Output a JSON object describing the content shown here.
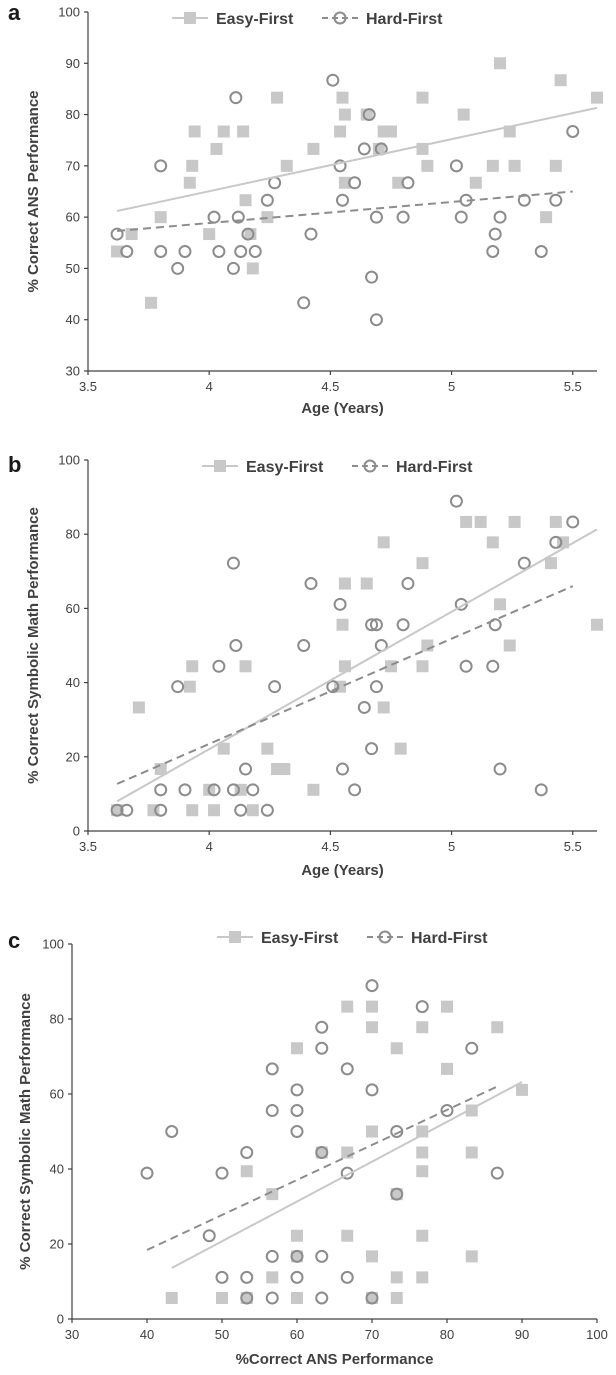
{
  "chart_data": [
    {
      "panel": "a",
      "type": "scatter",
      "xlabel": "Age (Years)",
      "ylabel": "% Correct ANS Performance",
      "xlim": [
        3.5,
        5.6
      ],
      "ylim": [
        30,
        100
      ],
      "xticks": [
        "3.5",
        "4",
        "4.5",
        "5",
        "5.5"
      ],
      "yticks": [
        "30",
        "40",
        "50",
        "60",
        "70",
        "80",
        "90",
        "100"
      ],
      "legend": [
        "Easy-First",
        "Hard-First"
      ],
      "series": [
        {
          "name": "Easy-First",
          "marker": "square",
          "color": "#c8c8c8",
          "points": [
            [
              3.62,
              53.3
            ],
            [
              3.68,
              56.7
            ],
            [
              3.76,
              43.3
            ],
            [
              3.8,
              60
            ],
            [
              3.92,
              66.7
            ],
            [
              3.93,
              70
            ],
            [
              3.94,
              76.7
            ],
            [
              4.0,
              56.7
            ],
            [
              4.03,
              73.3
            ],
            [
              4.06,
              76.7
            ],
            [
              4.14,
              76.7
            ],
            [
              4.15,
              63.3
            ],
            [
              4.17,
              56.7
            ],
            [
              4.18,
              50
            ],
            [
              4.24,
              60
            ],
            [
              4.28,
              83.3
            ],
            [
              4.32,
              70
            ],
            [
              4.43,
              73.3
            ],
            [
              4.54,
              76.7
            ],
            [
              4.55,
              83.3
            ],
            [
              4.56,
              80
            ],
            [
              4.56,
              66.7
            ],
            [
              4.65,
              80
            ],
            [
              4.7,
              73.3
            ],
            [
              4.72,
              76.7
            ],
            [
              4.75,
              76.7
            ],
            [
              4.78,
              66.7
            ],
            [
              4.88,
              83.3
            ],
            [
              4.88,
              73.3
            ],
            [
              4.9,
              70
            ],
            [
              5.05,
              80
            ],
            [
              5.1,
              66.7
            ],
            [
              5.17,
              70
            ],
            [
              5.2,
              90
            ],
            [
              5.24,
              76.7
            ],
            [
              5.26,
              70
            ],
            [
              5.39,
              60
            ],
            [
              5.43,
              70
            ],
            [
              5.45,
              86.7
            ],
            [
              5.6,
              83.3
            ]
          ]
        },
        {
          "name": "Hard-First",
          "marker": "circle",
          "color": "#8c8c8c",
          "points": [
            [
              3.62,
              56.7
            ],
            [
              3.66,
              53.3
            ],
            [
              3.8,
              70
            ],
            [
              3.8,
              53.3
            ],
            [
              3.87,
              50
            ],
            [
              3.9,
              53.3
            ],
            [
              4.02,
              60
            ],
            [
              4.04,
              53.3
            ],
            [
              4.1,
              50
            ],
            [
              4.11,
              83.3
            ],
            [
              4.12,
              60
            ],
            [
              4.13,
              53.3
            ],
            [
              4.16,
              56.7
            ],
            [
              4.19,
              53.3
            ],
            [
              4.24,
              63.3
            ],
            [
              4.27,
              66.7
            ],
            [
              4.39,
              43.3
            ],
            [
              4.42,
              56.7
            ],
            [
              4.51,
              86.7
            ],
            [
              4.54,
              70
            ],
            [
              4.55,
              63.3
            ],
            [
              4.6,
              66.7
            ],
            [
              4.64,
              73.3
            ],
            [
              4.66,
              80
            ],
            [
              4.67,
              48.3
            ],
            [
              4.69,
              60
            ],
            [
              4.69,
              40
            ],
            [
              4.71,
              73.3
            ],
            [
              4.8,
              60
            ],
            [
              4.82,
              66.7
            ],
            [
              5.02,
              70
            ],
            [
              5.04,
              60
            ],
            [
              5.06,
              63.3
            ],
            [
              5.17,
              53.3
            ],
            [
              5.18,
              56.7
            ],
            [
              5.2,
              60
            ],
            [
              5.3,
              63.3
            ],
            [
              5.37,
              53.3
            ],
            [
              5.43,
              63.3
            ],
            [
              5.5,
              76.7
            ]
          ]
        }
      ],
      "trendlines": [
        {
          "name": "Easy-First",
          "from": [
            3.62,
            61.2
          ],
          "to": [
            5.6,
            81.3
          ]
        },
        {
          "name": "Hard-First",
          "from": [
            3.62,
            57.3
          ],
          "to": [
            5.5,
            65.0
          ]
        }
      ]
    },
    {
      "panel": "b",
      "type": "scatter",
      "xlabel": "Age (Years)",
      "ylabel": "% Correct Symbolic Math Performance",
      "xlim": [
        3.5,
        5.6
      ],
      "ylim": [
        0,
        100
      ],
      "xticks": [
        "3.5",
        "4",
        "4.5",
        "5",
        "5.5"
      ],
      "yticks": [
        "0",
        "20",
        "40",
        "60",
        "80",
        "100"
      ],
      "legend": [
        "Easy-First",
        "Hard-First"
      ],
      "series": [
        {
          "name": "Easy-First",
          "marker": "square",
          "color": "#c8c8c8",
          "points": [
            [
              3.62,
              5.6
            ],
            [
              3.71,
              33.3
            ],
            [
              3.77,
              5.6
            ],
            [
              3.8,
              16.7
            ],
            [
              3.92,
              38.9
            ],
            [
              3.93,
              44.4
            ],
            [
              3.93,
              5.6
            ],
            [
              4.0,
              11.1
            ],
            [
              4.02,
              5.6
            ],
            [
              4.06,
              22.2
            ],
            [
              4.13,
              11.1
            ],
            [
              4.15,
              44.4
            ],
            [
              4.18,
              5.6
            ],
            [
              4.24,
              22.2
            ],
            [
              4.28,
              16.7
            ],
            [
              4.31,
              16.7
            ],
            [
              4.43,
              11.1
            ],
            [
              4.54,
              38.9
            ],
            [
              4.55,
              55.6
            ],
            [
              4.56,
              66.7
            ],
            [
              4.56,
              44.4
            ],
            [
              4.65,
              66.7
            ],
            [
              4.72,
              77.8
            ],
            [
              4.72,
              33.3
            ],
            [
              4.75,
              44.4
            ],
            [
              4.79,
              22.2
            ],
            [
              4.88,
              72.2
            ],
            [
              4.88,
              44.4
            ],
            [
              4.9,
              50
            ],
            [
              5.06,
              83.3
            ],
            [
              5.12,
              83.3
            ],
            [
              5.17,
              77.8
            ],
            [
              5.2,
              61.1
            ],
            [
              5.24,
              50
            ],
            [
              5.26,
              83.3
            ],
            [
              5.41,
              72.2
            ],
            [
              5.43,
              83.3
            ],
            [
              5.46,
              77.8
            ],
            [
              5.6,
              55.6
            ]
          ]
        },
        {
          "name": "Hard-First",
          "marker": "circle",
          "color": "#8c8c8c",
          "points": [
            [
              3.62,
              5.6
            ],
            [
              3.66,
              5.6
            ],
            [
              3.8,
              11.1
            ],
            [
              3.8,
              5.6
            ],
            [
              3.87,
              38.9
            ],
            [
              3.9,
              11.1
            ],
            [
              4.02,
              11.1
            ],
            [
              4.04,
              44.4
            ],
            [
              4.1,
              72.2
            ],
            [
              4.11,
              50
            ],
            [
              4.1,
              11.1
            ],
            [
              4.13,
              5.6
            ],
            [
              4.15,
              16.7
            ],
            [
              4.18,
              11.1
            ],
            [
              4.24,
              5.6
            ],
            [
              4.27,
              38.9
            ],
            [
              4.39,
              50
            ],
            [
              4.42,
              66.7
            ],
            [
              4.51,
              38.9
            ],
            [
              4.54,
              61.1
            ],
            [
              4.55,
              16.7
            ],
            [
              4.6,
              11.1
            ],
            [
              4.64,
              33.3
            ],
            [
              4.67,
              55.6
            ],
            [
              4.67,
              22.2
            ],
            [
              4.69,
              55.6
            ],
            [
              4.69,
              38.9
            ],
            [
              4.71,
              50
            ],
            [
              4.8,
              55.6
            ],
            [
              4.82,
              66.7
            ],
            [
              5.02,
              88.9
            ],
            [
              5.04,
              61.1
            ],
            [
              5.06,
              44.4
            ],
            [
              5.17,
              44.4
            ],
            [
              5.18,
              55.6
            ],
            [
              5.2,
              16.7
            ],
            [
              5.3,
              72.2
            ],
            [
              5.37,
              11.1
            ],
            [
              5.43,
              77.8
            ],
            [
              5.5,
              83.3
            ]
          ]
        }
      ],
      "trendlines": [
        {
          "name": "Easy-First",
          "from": [
            3.62,
            8.0
          ],
          "to": [
            5.6,
            81.3
          ]
        },
        {
          "name": "Hard-First",
          "from": [
            3.62,
            12.7
          ],
          "to": [
            5.5,
            66.0
          ]
        }
      ]
    },
    {
      "panel": "c",
      "type": "scatter",
      "xlabel": "%Correct ANS Performance",
      "ylabel": "% Correct Symbolic Math Performance",
      "xlim": [
        30,
        100
      ],
      "ylim": [
        0,
        100
      ],
      "xticks": [
        "30",
        "40",
        "50",
        "60",
        "70",
        "80",
        "90",
        "100"
      ],
      "yticks": [
        "0",
        "20",
        "40",
        "60",
        "80",
        "100"
      ],
      "legend": [
        "Easy-First",
        "Hard-First"
      ],
      "series": [
        {
          "name": "Easy-First",
          "marker": "square",
          "color": "#c8c8c8",
          "points": [
            [
              43.3,
              5.6
            ],
            [
              50,
              5.6
            ],
            [
              53.3,
              5.6
            ],
            [
              53.3,
              39.4
            ],
            [
              56.7,
              11.1
            ],
            [
              56.7,
              33.3
            ],
            [
              60,
              5.6
            ],
            [
              60,
              16.7
            ],
            [
              60,
              22.2
            ],
            [
              60,
              72.2
            ],
            [
              63.3,
              44.4
            ],
            [
              66.7,
              22.2
            ],
            [
              66.7,
              44.4
            ],
            [
              66.7,
              83.3
            ],
            [
              70,
              5.6
            ],
            [
              70,
              16.7
            ],
            [
              70,
              50
            ],
            [
              70,
              77.8
            ],
            [
              70,
              83.3
            ],
            [
              73.3,
              5.6
            ],
            [
              73.3,
              11.1
            ],
            [
              73.3,
              33.3
            ],
            [
              73.3,
              72.2
            ],
            [
              76.7,
              11.1
            ],
            [
              76.7,
              22.2
            ],
            [
              76.7,
              39.4
            ],
            [
              76.7,
              44.4
            ],
            [
              76.7,
              50
            ],
            [
              76.7,
              77.8
            ],
            [
              80,
              66.7
            ],
            [
              80,
              83.3
            ],
            [
              83.3,
              16.7
            ],
            [
              83.3,
              44.4
            ],
            [
              83.3,
              55.6
            ],
            [
              86.7,
              77.8
            ],
            [
              90,
              61.1
            ]
          ]
        },
        {
          "name": "Hard-First",
          "marker": "circle",
          "color": "#8c8c8c",
          "points": [
            [
              40,
              38.9
            ],
            [
              43.3,
              50
            ],
            [
              48.3,
              22.2
            ],
            [
              50,
              11.1
            ],
            [
              50,
              38.9
            ],
            [
              53.3,
              5.6
            ],
            [
              53.3,
              11.1
            ],
            [
              53.3,
              44.4
            ],
            [
              56.7,
              5.6
            ],
            [
              56.7,
              16.7
            ],
            [
              56.7,
              55.6
            ],
            [
              56.7,
              66.7
            ],
            [
              60,
              11.1
            ],
            [
              60,
              16.7
            ],
            [
              60,
              50
            ],
            [
              60,
              55.6
            ],
            [
              60,
              61.1
            ],
            [
              63.3,
              5.6
            ],
            [
              63.3,
              16.7
            ],
            [
              63.3,
              44.4
            ],
            [
              63.3,
              72.2
            ],
            [
              63.3,
              77.8
            ],
            [
              66.7,
              11.1
            ],
            [
              66.7,
              38.9
            ],
            [
              66.7,
              66.7
            ],
            [
              70,
              5.6
            ],
            [
              70,
              61.1
            ],
            [
              70,
              88.9
            ],
            [
              73.3,
              33.3
            ],
            [
              73.3,
              50
            ],
            [
              76.7,
              83.3
            ],
            [
              80,
              55.6
            ],
            [
              83.3,
              72.2
            ],
            [
              86.7,
              38.9
            ]
          ]
        }
      ],
      "trendlines": [
        {
          "name": "Easy-First",
          "from": [
            43.3,
            13.6
          ],
          "to": [
            90,
            63.2
          ]
        },
        {
          "name": "Hard-First",
          "from": [
            40,
            18.4
          ],
          "to": [
            86.7,
            62.0
          ]
        }
      ]
    }
  ]
}
